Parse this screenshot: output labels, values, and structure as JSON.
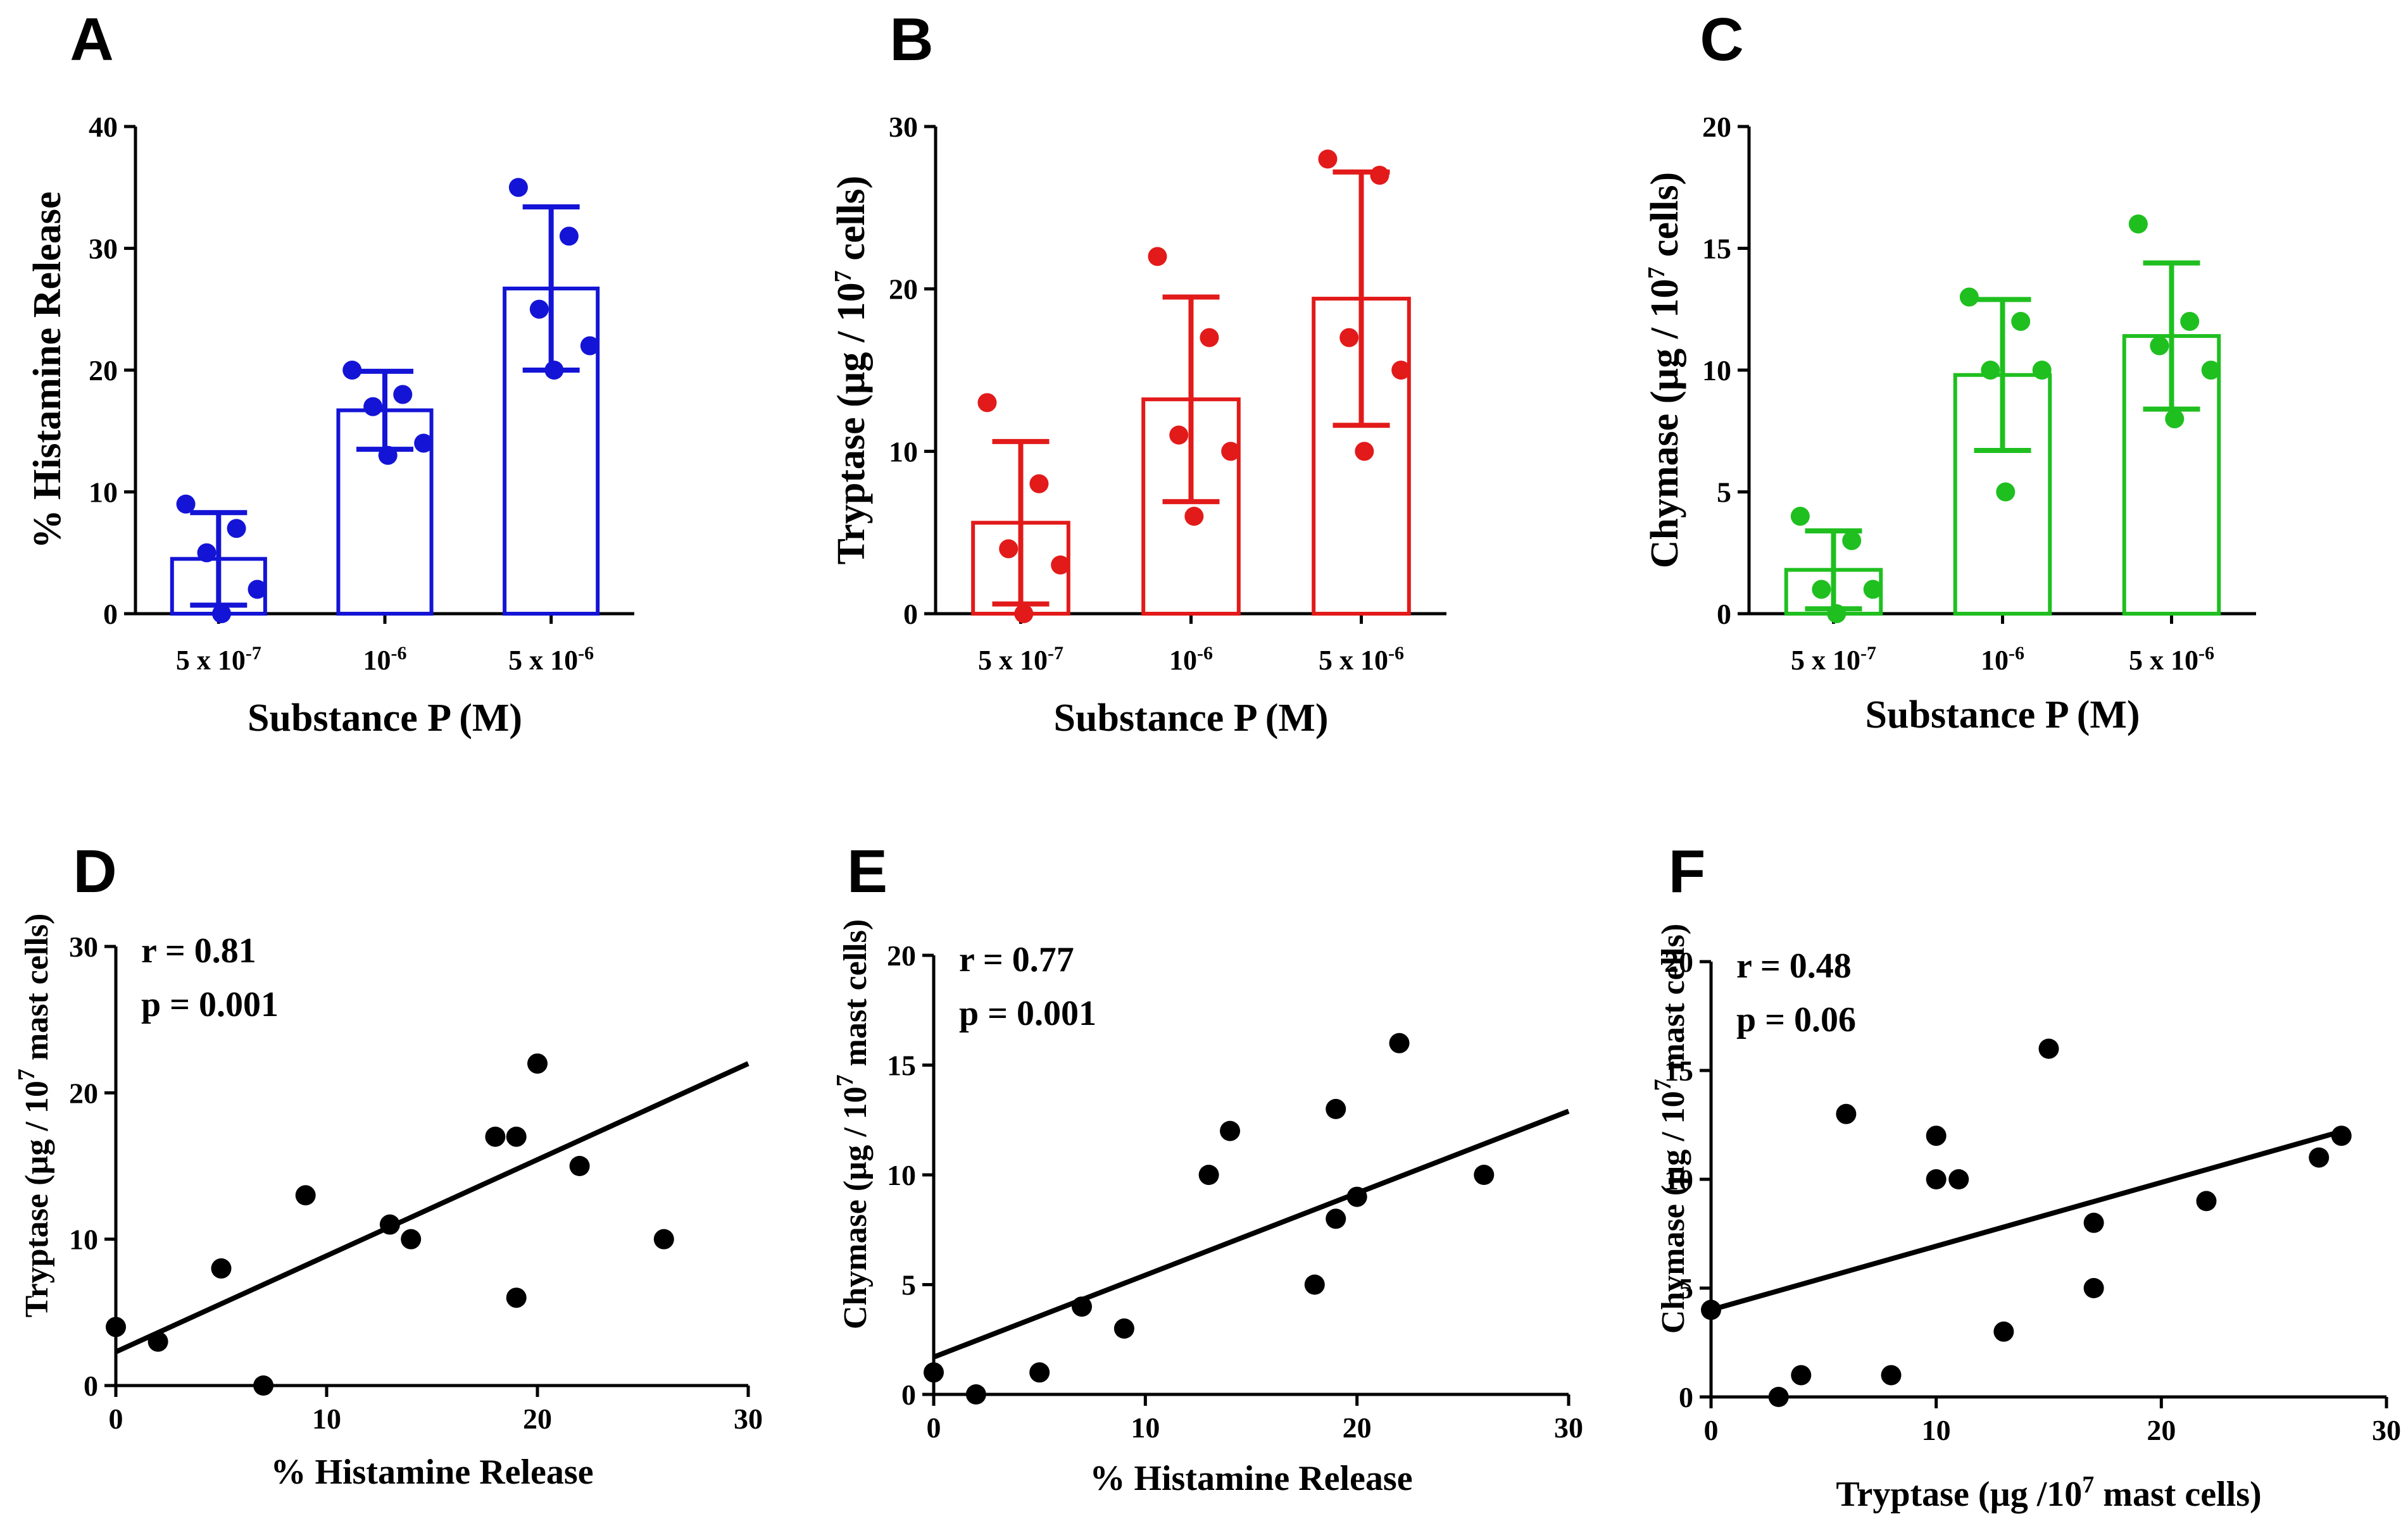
{
  "chart_data": [
    {
      "panel": "A",
      "type": "bar",
      "color": "#1414d6",
      "categories": [
        {
          "base": "5 x 10",
          "exp": "-7"
        },
        {
          "base": "10",
          "exp": "-6"
        },
        {
          "base": "5 x 10",
          "exp": "-6"
        }
      ],
      "means": [
        4.5,
        16.7,
        26.7
      ],
      "sd": [
        3.8,
        3.2,
        6.7
      ],
      "points": [
        [
          9,
          7,
          5,
          2,
          0
        ],
        [
          20,
          18,
          17,
          14,
          13
        ],
        [
          35,
          31,
          25,
          22,
          20
        ]
      ],
      "ylim": [
        0,
        40
      ],
      "yticks": [
        0,
        10,
        20,
        30,
        40
      ],
      "xlabel": "Substance P (M)",
      "ylabel": "%  Histamine  Release"
    },
    {
      "panel": "B",
      "type": "bar",
      "color": "#e21a1a",
      "categories": [
        {
          "base": "5 x 10",
          "exp": "-7"
        },
        {
          "base": "10",
          "exp": "-6"
        },
        {
          "base": "5 x 10",
          "exp": "-6"
        }
      ],
      "means": [
        5.6,
        13.2,
        19.4
      ],
      "sd": [
        5.0,
        6.3,
        7.8
      ],
      "points": [
        [
          13,
          8,
          4,
          3,
          0
        ],
        [
          22,
          17,
          11,
          10,
          6
        ],
        [
          28,
          27,
          17,
          15,
          10
        ]
      ],
      "ylim": [
        0,
        30
      ],
      "yticks": [
        0,
        10,
        20,
        30
      ],
      "xlabel": "Substance P (M)",
      "ylabel": {
        "pre": "Tryptase (µg / 10",
        "sup": "7",
        "post": " cells)"
      }
    },
    {
      "panel": "C",
      "type": "bar",
      "color": "#1fbf1f",
      "categories": [
        {
          "base": "5 x 10",
          "exp": "-7"
        },
        {
          "base": "10",
          "exp": "-6"
        },
        {
          "base": "5 x 10",
          "exp": "-6"
        }
      ],
      "means": [
        1.8,
        9.8,
        11.4
      ],
      "sd": [
        1.6,
        3.1,
        3.0
      ],
      "points": [
        [
          4,
          3,
          1,
          1,
          0
        ],
        [
          13,
          12,
          10,
          10,
          5
        ],
        [
          16,
          12,
          11,
          10,
          8
        ]
      ],
      "ylim": [
        0,
        20
      ],
      "yticks": [
        0,
        5,
        10,
        15,
        20
      ],
      "xlabel": "Substance P (M)",
      "ylabel": {
        "pre": "Chymase (µg / 10",
        "sup": "7",
        "post": " cells)"
      }
    },
    {
      "panel": "D",
      "type": "scatter",
      "color": "#000000",
      "points": [
        [
          0,
          4
        ],
        [
          2,
          3
        ],
        [
          5,
          8
        ],
        [
          7,
          0
        ],
        [
          9,
          13
        ],
        [
          13,
          11
        ],
        [
          14,
          10
        ],
        [
          18,
          17
        ],
        [
          19,
          17
        ],
        [
          19,
          6
        ],
        [
          20,
          22
        ],
        [
          22,
          15
        ],
        [
          26,
          10
        ]
      ],
      "fit_line": [
        [
          0,
          2.3
        ],
        [
          30,
          22.0
        ]
      ],
      "xlim": [
        0,
        30
      ],
      "ylim": [
        0,
        30
      ],
      "xticks": [
        0,
        10,
        20,
        30
      ],
      "yticks": [
        0,
        10,
        20,
        30
      ],
      "annotations": [
        "r = 0.81",
        "p = 0.001"
      ],
      "xlabel": "% Histamine Release",
      "ylabel": {
        "pre": "Tryptase (µg / 10",
        "sup": "7",
        "post": " mast cells)"
      }
    },
    {
      "panel": "E",
      "type": "scatter",
      "color": "#000000",
      "points": [
        [
          0,
          1
        ],
        [
          2,
          0
        ],
        [
          5,
          1
        ],
        [
          7,
          4
        ],
        [
          9,
          3
        ],
        [
          13,
          10
        ],
        [
          14,
          12
        ],
        [
          18,
          5
        ],
        [
          19,
          8
        ],
        [
          19,
          13
        ],
        [
          20,
          9
        ],
        [
          22,
          16
        ],
        [
          26,
          10
        ]
      ],
      "fit_line": [
        [
          0,
          1.7
        ],
        [
          30,
          12.9
        ]
      ],
      "xlim": [
        0,
        30
      ],
      "ylim": [
        0,
        20
      ],
      "xticks": [
        0,
        10,
        20,
        30
      ],
      "yticks": [
        0,
        5,
        10,
        15,
        20
      ],
      "annotations": [
        "r = 0.77",
        "p = 0.001"
      ],
      "xlabel": "% Histamine Release",
      "ylabel": {
        "pre": "Chymase (µg / 10",
        "sup": "7",
        "post": " mast cells)"
      }
    },
    {
      "panel": "F",
      "type": "scatter",
      "color": "#000000",
      "points": [
        [
          0,
          4
        ],
        [
          3,
          0
        ],
        [
          4,
          1
        ],
        [
          6,
          13
        ],
        [
          8,
          1
        ],
        [
          10,
          12
        ],
        [
          10,
          10
        ],
        [
          11,
          10
        ],
        [
          13,
          3
        ],
        [
          15,
          16
        ],
        [
          17,
          8
        ],
        [
          17,
          5
        ],
        [
          22,
          9
        ],
        [
          27,
          11
        ],
        [
          28,
          12
        ]
      ],
      "fit_line": [
        [
          0,
          4.0
        ],
        [
          28,
          12.2
        ]
      ],
      "xlim": [
        0,
        30
      ],
      "ylim": [
        0,
        20
      ],
      "xticks": [
        0,
        10,
        20,
        30
      ],
      "yticks": [
        0,
        5,
        10,
        15,
        20
      ],
      "annotations": [
        "r = 0.48",
        "p = 0.06"
      ],
      "xlabel": {
        "pre": "Tryptase (µg /10",
        "sup": "7",
        "post": " mast cells)"
      },
      "ylabel": {
        "pre": "Chymase (µg / 10",
        "sup": "7",
        "post": " mast cells)"
      }
    }
  ]
}
